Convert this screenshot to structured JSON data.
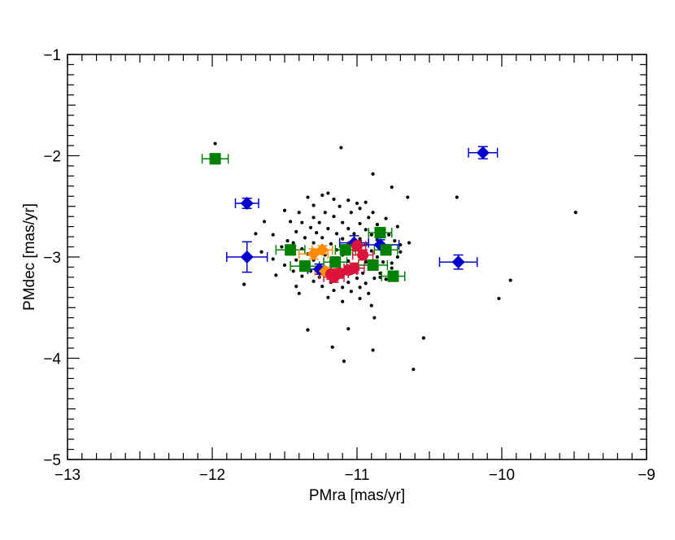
{
  "chart_data": {
    "type": "scatter",
    "xlabel": "PMra [mas/yr]",
    "ylabel": "PMdec [mas/yr]",
    "xlim": [
      -13,
      -9
    ],
    "ylim": [
      -5,
      -1
    ],
    "xticks": [
      -13,
      -12,
      -11,
      -10,
      -9
    ],
    "yticks": [
      -5,
      -4,
      -3,
      -2,
      -1
    ],
    "xtick_labels": [
      "−13",
      "−12",
      "−11",
      "−10",
      "−9"
    ],
    "ytick_labels": [
      "−5",
      "−4",
      "−3",
      "−2",
      "−1"
    ],
    "grid": false,
    "colors": {
      "background_stars": "#000000",
      "blue_diamonds": "#0000cc",
      "green_squares": "#008000",
      "orange_diamonds": "#ff8c00",
      "red_circles": "#dc143c"
    },
    "series": [
      {
        "marker": "dot",
        "color": "#000000",
        "points": [
          [
            -11.98,
            -1.88
          ],
          [
            -11.11,
            -1.92
          ],
          [
            -10.89,
            -2.18
          ],
          [
            -10.76,
            -2.31
          ],
          [
            -10.65,
            -2.41
          ],
          [
            -10.31,
            -2.41
          ],
          [
            -9.49,
            -2.56
          ],
          [
            -11.2,
            -2.37
          ],
          [
            -11.24,
            -2.39
          ],
          [
            -11.34,
            -2.41
          ],
          [
            -11.16,
            -2.43
          ],
          [
            -11.06,
            -2.44
          ],
          [
            -11.0,
            -2.47
          ],
          [
            -10.94,
            -2.46
          ],
          [
            -11.3,
            -2.49
          ],
          [
            -11.12,
            -2.5
          ],
          [
            -10.98,
            -2.52
          ],
          [
            -11.5,
            -2.54
          ],
          [
            -11.4,
            -2.56
          ],
          [
            -11.22,
            -2.56
          ],
          [
            -11.04,
            -2.56
          ],
          [
            -10.89,
            -2.56
          ],
          [
            -11.16,
            -2.6
          ],
          [
            -11.3,
            -2.61
          ],
          [
            -10.92,
            -2.61
          ],
          [
            -10.8,
            -2.62
          ],
          [
            -11.46,
            -2.65
          ],
          [
            -11.38,
            -2.66
          ],
          [
            -11.26,
            -2.66
          ],
          [
            -11.1,
            -2.66
          ],
          [
            -10.98,
            -2.67
          ],
          [
            -10.86,
            -2.68
          ],
          [
            -11.64,
            -2.65
          ],
          [
            -10.72,
            -2.7
          ],
          [
            -11.32,
            -2.71
          ],
          [
            -11.2,
            -2.72
          ],
          [
            -11.06,
            -2.72
          ],
          [
            -10.94,
            -2.73
          ],
          [
            -11.42,
            -2.75
          ],
          [
            -11.28,
            -2.76
          ],
          [
            -11.14,
            -2.77
          ],
          [
            -11.02,
            -2.77
          ],
          [
            -10.9,
            -2.78
          ],
          [
            -10.78,
            -2.78
          ],
          [
            -11.58,
            -2.78
          ],
          [
            -11.36,
            -2.81
          ],
          [
            -11.24,
            -2.81
          ],
          [
            -11.1,
            -2.82
          ],
          [
            -10.98,
            -2.82
          ],
          [
            -10.86,
            -2.83
          ],
          [
            -10.74,
            -2.84
          ],
          [
            -11.44,
            -2.86
          ],
          [
            -11.3,
            -2.86
          ],
          [
            -11.18,
            -2.87
          ],
          [
            -11.06,
            -2.87
          ],
          [
            -10.94,
            -2.88
          ],
          [
            -10.82,
            -2.89
          ],
          [
            -10.7,
            -2.88
          ],
          [
            -11.52,
            -2.9
          ],
          [
            -11.38,
            -2.92
          ],
          [
            -11.26,
            -2.92
          ],
          [
            -11.14,
            -2.93
          ],
          [
            -11.02,
            -2.93
          ],
          [
            -10.9,
            -2.94
          ],
          [
            -10.78,
            -2.95
          ],
          [
            -11.46,
            -2.97
          ],
          [
            -11.34,
            -2.97
          ],
          [
            -11.22,
            -2.98
          ],
          [
            -11.1,
            -2.98
          ],
          [
            -10.98,
            -2.99
          ],
          [
            -10.86,
            -3.0
          ],
          [
            -10.72,
            -3.0
          ],
          [
            -11.58,
            -3.02
          ],
          [
            -11.42,
            -3.03
          ],
          [
            -11.3,
            -3.03
          ],
          [
            -11.18,
            -3.04
          ],
          [
            -11.06,
            -3.04
          ],
          [
            -10.94,
            -3.05
          ],
          [
            -10.82,
            -3.05
          ],
          [
            -11.5,
            -3.08
          ],
          [
            -11.36,
            -3.08
          ],
          [
            -11.26,
            -3.09
          ],
          [
            -11.14,
            -3.09
          ],
          [
            -11.02,
            -3.1
          ],
          [
            -10.9,
            -3.1
          ],
          [
            -10.76,
            -3.11
          ],
          [
            -11.44,
            -3.14
          ],
          [
            -11.32,
            -3.14
          ],
          [
            -11.2,
            -3.15
          ],
          [
            -11.08,
            -3.15
          ],
          [
            -10.96,
            -3.16
          ],
          [
            -10.84,
            -3.16
          ],
          [
            -11.38,
            -3.19
          ],
          [
            -11.26,
            -3.2
          ],
          [
            -11.12,
            -3.2
          ],
          [
            -11.0,
            -3.21
          ],
          [
            -10.88,
            -3.21
          ],
          [
            -11.3,
            -3.24
          ],
          [
            -11.18,
            -3.25
          ],
          [
            -11.06,
            -3.25
          ],
          [
            -10.94,
            -3.26
          ],
          [
            -10.8,
            -3.22
          ],
          [
            -11.24,
            -3.29
          ],
          [
            -11.1,
            -3.3
          ],
          [
            -10.98,
            -3.3
          ],
          [
            -11.16,
            -3.33
          ],
          [
            -11.04,
            -3.34
          ],
          [
            -10.92,
            -3.36
          ],
          [
            -11.42,
            -3.29
          ],
          [
            -11.4,
            -3.36
          ],
          [
            -11.2,
            -3.4
          ],
          [
            -10.98,
            -3.41
          ],
          [
            -11.1,
            -3.44
          ],
          [
            -10.9,
            -3.48
          ],
          [
            -11.78,
            -3.27
          ],
          [
            -10.84,
            -3.2
          ],
          [
            -10.76,
            -3.06
          ],
          [
            -10.7,
            -2.95
          ],
          [
            -11.7,
            -2.77
          ],
          [
            -10.88,
            -3.6
          ],
          [
            -11.34,
            -3.72
          ],
          [
            -11.06,
            -3.71
          ],
          [
            -10.54,
            -3.8
          ],
          [
            -11.17,
            -3.89
          ],
          [
            -10.89,
            -3.92
          ],
          [
            -11.09,
            -4.03
          ],
          [
            -10.61,
            -4.11
          ],
          [
            -10.02,
            -3.41
          ],
          [
            -9.94,
            -3.23
          ],
          [
            -11.66,
            -2.95
          ],
          [
            -11.48,
            -2.84
          ],
          [
            -10.64,
            -2.86
          ],
          [
            -11.56,
            -3.18
          ]
        ]
      },
      {
        "marker": "diamond",
        "color": "#0000cc",
        "points": [
          {
            "x": -10.13,
            "y": -1.97,
            "xerr": 0.1,
            "yerr": 0.06
          },
          {
            "x": -11.76,
            "y": -2.47,
            "xerr": 0.08,
            "yerr": 0.05
          },
          {
            "x": -11.76,
            "y": -3.0,
            "xerr": 0.14,
            "yerr": 0.15
          },
          {
            "x": -10.3,
            "y": -3.05,
            "xerr": 0.13,
            "yerr": 0.07
          },
          {
            "x": -10.84,
            "y": -2.88,
            "xerr": 0.13,
            "yerr": 0.05
          },
          {
            "x": -11.02,
            "y": -2.86,
            "xerr": 0.1,
            "yerr": 0.07
          },
          {
            "x": -11.26,
            "y": -3.12,
            "xerr": 0.08,
            "yerr": 0.05
          }
        ]
      },
      {
        "marker": "square",
        "color": "#008000",
        "points": [
          {
            "x": -11.98,
            "y": -2.03,
            "xerr": 0.09,
            "yerr": 0.05
          },
          {
            "x": -11.46,
            "y": -2.93,
            "xerr": 0.1,
            "yerr": 0.05
          },
          {
            "x": -11.36,
            "y": -3.09,
            "xerr": 0.1,
            "yerr": 0.05
          },
          {
            "x": -11.15,
            "y": -3.05,
            "xerr": 0.08,
            "yerr": 0.05
          },
          {
            "x": -10.84,
            "y": -2.76,
            "xerr": 0.08,
            "yerr": 0.05
          },
          {
            "x": -10.8,
            "y": -2.93,
            "xerr": 0.08,
            "yerr": 0.05
          },
          {
            "x": -10.89,
            "y": -3.08,
            "xerr": 0.1,
            "yerr": 0.05
          },
          {
            "x": -10.75,
            "y": -3.19,
            "xerr": 0.08,
            "yerr": 0.05
          },
          {
            "x": -11.08,
            "y": -2.93,
            "xerr": 0.07,
            "yerr": 0.05
          }
        ]
      },
      {
        "marker": "diamond",
        "color": "#ff8c00",
        "points": [
          {
            "x": -11.3,
            "y": -2.97,
            "xerr": 0.1,
            "yerr": 0.05
          },
          {
            "x": -11.24,
            "y": -2.93,
            "xerr": 0.07,
            "yerr": 0.04
          },
          {
            "x": -11.22,
            "y": -3.14,
            "xerr": 0.07,
            "yerr": 0.04
          }
        ]
      },
      {
        "marker": "circle",
        "color": "#dc143c",
        "points": [
          {
            "x": -11.18,
            "y": -3.17,
            "xerr": 0.08,
            "yerr": 0.05
          },
          {
            "x": -11.16,
            "y": -3.2,
            "xerr": 0.07,
            "yerr": 0.05
          },
          {
            "x": -11.12,
            "y": -3.16,
            "xerr": 0.06,
            "yerr": 0.04
          },
          {
            "x": -11.02,
            "y": -3.11,
            "xerr": 0.07,
            "yerr": 0.05
          },
          {
            "x": -11.0,
            "y": -2.89,
            "xerr": 0.06,
            "yerr": 0.05
          },
          {
            "x": -10.96,
            "y": -2.98,
            "xerr": 0.07,
            "yerr": 0.05
          },
          {
            "x": -11.06,
            "y": -3.13,
            "xerr": 0.06,
            "yerr": 0.04
          }
        ]
      }
    ]
  }
}
